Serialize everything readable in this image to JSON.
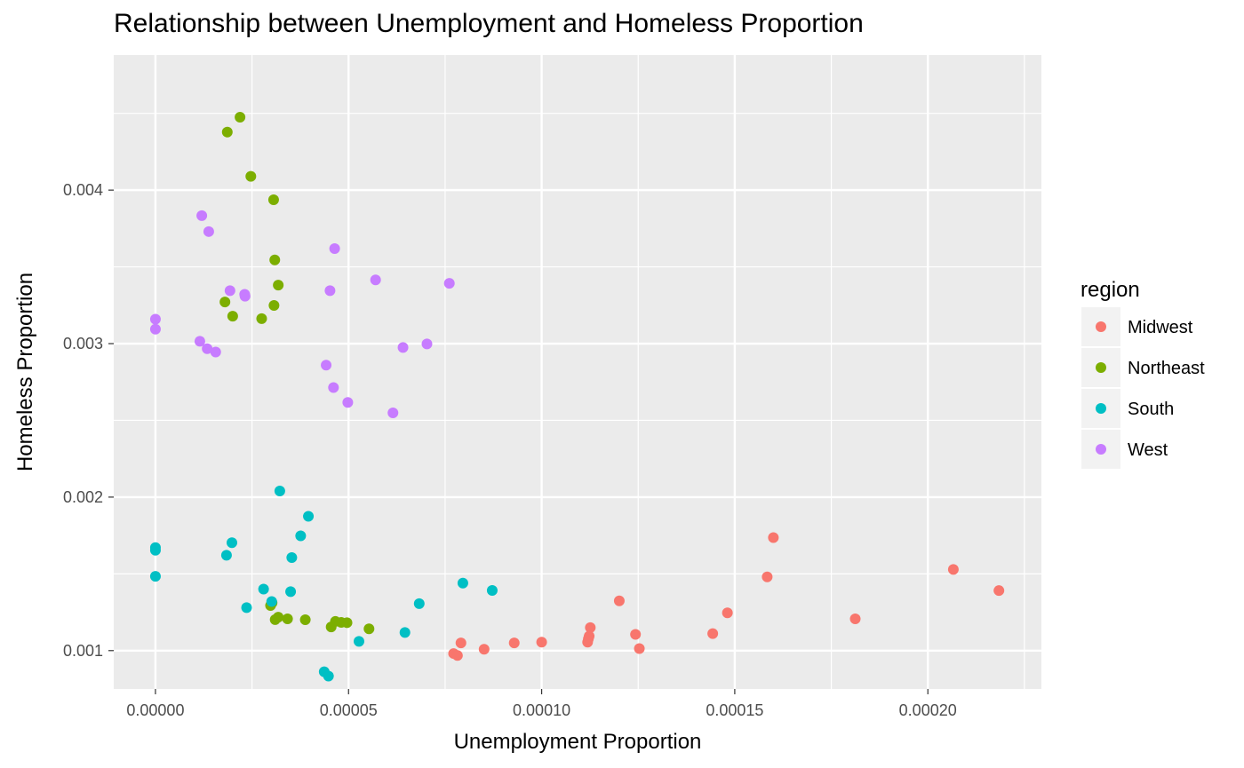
{
  "chart_data": {
    "type": "scatter",
    "title": "Relationship between Unemployment and Homeless Proportion",
    "xlabel": "Unemployment Proportion",
    "ylabel": "Homeless Proportion",
    "xlim": [
      -1.08e-05,
      0.0002294
    ],
    "ylim": [
      0.00075,
      0.00488
    ],
    "x_ticks": [
      0.0,
      5e-05,
      0.0001,
      0.00015,
      0.0002
    ],
    "x_tick_labels": [
      "0.00000",
      "0.00005",
      "0.00010",
      "0.00015",
      "0.00020"
    ],
    "y_ticks": [
      0.001,
      0.002,
      0.003,
      0.004
    ],
    "y_tick_labels": [
      "0.001",
      "0.002",
      "0.003",
      "0.004"
    ],
    "grid": true,
    "legend": {
      "title": "region",
      "placement": "right"
    },
    "series": [
      {
        "name": "Midwest",
        "color": "#F8766D",
        "points": [
          [
            7.72e-05,
            0.000981
          ],
          [
            7.82e-05,
            0.000968
          ],
          [
            7.91e-05,
            0.00105
          ],
          [
            8.51e-05,
            0.001009
          ],
          [
            9.29e-05,
            0.00105
          ],
          [
            0.0001,
            0.001055
          ],
          [
            0.0001119,
            0.001055
          ],
          [
            0.0001121,
            0.001077
          ],
          [
            0.0001123,
            0.001094
          ],
          [
            0.0001126,
            0.00115
          ],
          [
            0.0001201,
            0.001324
          ],
          [
            0.0001243,
            0.001106
          ],
          [
            0.0001253,
            0.001013
          ],
          [
            0.0001443,
            0.001111
          ],
          [
            0.0001481,
            0.001246
          ],
          [
            0.0001584,
            0.00148
          ],
          [
            0.00016,
            0.001736
          ],
          [
            0.0001812,
            0.001207
          ],
          [
            0.0002066,
            0.001529
          ],
          [
            0.0002184,
            0.001391
          ]
        ]
      },
      {
        "name": "Northeast",
        "color": "#7CAE00",
        "points": [
          [
            2.19e-05,
            0.004475
          ],
          [
            1.86e-05,
            0.004378
          ],
          [
            2.47e-05,
            0.00409
          ],
          [
            3.06e-05,
            0.003937
          ],
          [
            3.09e-05,
            0.003545
          ],
          [
            3.18e-05,
            0.003381
          ],
          [
            1.8e-05,
            0.003271
          ],
          [
            3.07e-05,
            0.003249
          ],
          [
            2e-05,
            0.003179
          ],
          [
            2.75e-05,
            0.003163
          ],
          [
            2.98e-05,
            0.001294
          ],
          [
            3.02e-05,
            0.001311
          ],
          [
            3.1e-05,
            0.001202
          ],
          [
            3.18e-05,
            0.001218
          ],
          [
            3.42e-05,
            0.001207
          ],
          [
            3.88e-05,
            0.001201
          ],
          [
            4.55e-05,
            0.001154
          ],
          [
            4.66e-05,
            0.00119
          ],
          [
            4.81e-05,
            0.001184
          ],
          [
            4.96e-05,
            0.001182
          ],
          [
            5.53e-05,
            0.001142
          ]
        ]
      },
      {
        "name": "South",
        "color": "#00BFC4",
        "points": [
          [
            0.0,
            0.001671
          ],
          [
            0.0,
            0.001654
          ],
          [
            0.0,
            0.001484
          ],
          [
            1.84e-05,
            0.001621
          ],
          [
            1.98e-05,
            0.001703
          ],
          [
            2.36e-05,
            0.00128
          ],
          [
            2.8e-05,
            0.001401
          ],
          [
            3.01e-05,
            0.00132
          ],
          [
            3.22e-05,
            0.00204
          ],
          [
            3.53e-05,
            0.001606
          ],
          [
            3.5e-05,
            0.001384
          ],
          [
            3.76e-05,
            0.001748
          ],
          [
            3.96e-05,
            0.001875
          ],
          [
            4.37e-05,
            0.000862
          ],
          [
            4.48e-05,
            0.000834
          ],
          [
            5.27e-05,
            0.00106
          ],
          [
            6.46e-05,
            0.001118
          ],
          [
            6.83e-05,
            0.001306
          ],
          [
            7.96e-05,
            0.00144
          ],
          [
            8.72e-05,
            0.001392
          ]
        ]
      },
      {
        "name": "West",
        "color": "#C77CFF",
        "points": [
          [
            1.2e-05,
            0.003834
          ],
          [
            1.38e-05,
            0.00373
          ],
          [
            4.64e-05,
            0.003619
          ],
          [
            5.7e-05,
            0.003415
          ],
          [
            7.61e-05,
            0.003393
          ],
          [
            1.93e-05,
            0.003345
          ],
          [
            2.31e-05,
            0.003321
          ],
          [
            2.32e-05,
            0.003309
          ],
          [
            4.52e-05,
            0.003345
          ],
          [
            0.0,
            0.003159
          ],
          [
            0.0,
            0.003094
          ],
          [
            1.15e-05,
            0.003015
          ],
          [
            1.34e-05,
            0.002967
          ],
          [
            1.56e-05,
            0.002945
          ],
          [
            6.41e-05,
            0.002975
          ],
          [
            7.03e-05,
            0.002998
          ],
          [
            4.42e-05,
            0.00286
          ],
          [
            4.61e-05,
            0.002714
          ],
          [
            4.98e-05,
            0.002617
          ],
          [
            6.15e-05,
            0.002549
          ]
        ]
      }
    ]
  }
}
